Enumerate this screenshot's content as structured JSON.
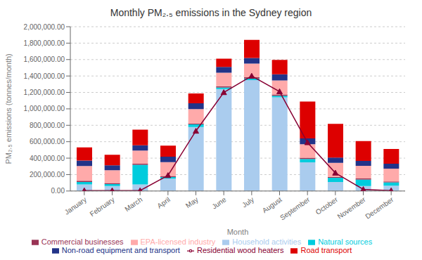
{
  "chart_data": {
    "type": "bar",
    "stacked": true,
    "title": "Monthly PM₂.₅ emissions in the Sydney region",
    "xlabel": "Month",
    "ylabel": "PM₂.₅ emissions (tonnes/month)",
    "categories": [
      "January",
      "February",
      "March",
      "April",
      "May",
      "June",
      "July",
      "August",
      "September",
      "October",
      "November",
      "December"
    ],
    "ylim": [
      0,
      2000000
    ],
    "yticks": [
      {
        "value": 0,
        "label": "0.00"
      },
      {
        "value": 200000,
        "label": "200,000.00"
      },
      {
        "value": 400000,
        "label": "400,000.00"
      },
      {
        "value": 600000,
        "label": "600,000.00"
      },
      {
        "value": 800000,
        "label": "800,000.00"
      },
      {
        "value": 1000000,
        "label": "1,000,000.00"
      },
      {
        "value": 1200000,
        "label": "1,200,000.00"
      },
      {
        "value": 1400000,
        "label": "1,400,000.00"
      },
      {
        "value": 1600000,
        "label": "1,600,000.00"
      },
      {
        "value": 1800000,
        "label": "1,800,000.00"
      },
      {
        "value": 2000000,
        "label": "2,000,000.00"
      }
    ],
    "grid": true,
    "legend": "bottom",
    "series": [
      {
        "name": "Household activities",
        "color": "#aaccee",
        "values": [
          80000,
          60000,
          80000,
          150000,
          780000,
          1240000,
          1350000,
          1140000,
          350000,
          110000,
          60000,
          65000
        ]
      },
      {
        "name": "Natural sources",
        "color": "#00ccdd",
        "values": [
          30000,
          25000,
          240000,
          20000,
          30000,
          20000,
          20000,
          20000,
          40000,
          50000,
          80000,
          40000
        ]
      },
      {
        "name": "Commercial businesses",
        "color": "#993355",
        "values": [
          15000,
          12000,
          12000,
          12000,
          12000,
          15000,
          15000,
          15000,
          15000,
          12000,
          12000,
          12000
        ]
      },
      {
        "name": "EPA-licensed industry",
        "color": "#ffaaaa",
        "values": [
          180000,
          155000,
          160000,
          170000,
          175000,
          165000,
          165000,
          170000,
          165000,
          170000,
          155000,
          155000
        ]
      },
      {
        "name": "Non-road equipment and transport",
        "color": "#223388",
        "values": [
          65000,
          60000,
          65000,
          65000,
          70000,
          70000,
          70000,
          75000,
          70000,
          65000,
          60000,
          60000
        ]
      },
      {
        "name": "Road transport",
        "color": "#dd0000",
        "values": [
          160000,
          130000,
          190000,
          135000,
          120000,
          100000,
          220000,
          175000,
          450000,
          410000,
          240000,
          180000
        ]
      },
      {
        "name": "Residential wood heaters",
        "type": "line",
        "color": "#880033",
        "marker": "triangle",
        "values": [
          5000,
          5000,
          5000,
          190000,
          730000,
          1200000,
          1400000,
          1210000,
          590000,
          220000,
          20000,
          5000
        ]
      }
    ]
  }
}
